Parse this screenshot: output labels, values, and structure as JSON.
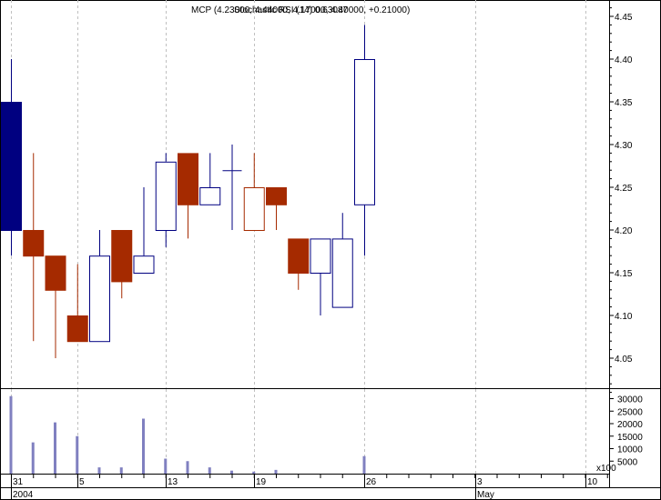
{
  "chart_data": {
    "type": "candlestick",
    "title": "MCP (4.23000, 4.44000, 4.17000, 4.40000, +0.21000)",
    "title_overlay": "Stochastic RSI (14) 0.63087",
    "price_axis": {
      "ticks": [
        "4.45",
        "4.40",
        "4.35",
        "4.30",
        "4.25",
        "4.20",
        "4.15",
        "4.10",
        "4.05"
      ],
      "ylim": [
        4.0,
        4.48
      ]
    },
    "volume_axis": {
      "ticks": [
        "30000",
        "25000",
        "20000",
        "15000",
        "10000",
        "5000",
        "x100"
      ],
      "ylim": [
        0,
        33000
      ]
    },
    "x_tick_labels": [
      "31",
      "5",
      "13",
      "19",
      "26",
      "3",
      "10"
    ],
    "x_sub_labels": [
      "2004",
      "May"
    ],
    "colors": {
      "up": "#000080",
      "down": "#a52a00",
      "solid_up": "#000080",
      "volume": "#8080c0"
    },
    "candles": [
      {
        "open": 4.2,
        "high": 4.4,
        "low": 4.17,
        "close": 4.35,
        "style": "solid-up",
        "volume": 31000
      },
      {
        "open": 4.2,
        "high": 4.29,
        "low": 4.07,
        "close": 4.17,
        "style": "down",
        "volume": 12500
      },
      {
        "open": 4.17,
        "high": 4.17,
        "low": 4.05,
        "close": 4.13,
        "style": "down",
        "volume": 20500
      },
      {
        "open": 4.1,
        "high": 4.16,
        "low": 4.07,
        "close": 4.07,
        "style": "down",
        "volume": 15000
      },
      {
        "open": 4.07,
        "high": 4.2,
        "low": 4.07,
        "close": 4.17,
        "style": "up",
        "volume": 2500
      },
      {
        "open": 4.2,
        "high": 4.2,
        "low": 4.12,
        "close": 4.14,
        "style": "down",
        "volume": 2500
      },
      {
        "open": 4.15,
        "high": 4.25,
        "low": 4.15,
        "close": 4.17,
        "style": "up",
        "volume": 22000
      },
      {
        "open": 4.2,
        "high": 4.29,
        "low": 4.18,
        "close": 4.28,
        "style": "up",
        "volume": 6000
      },
      {
        "open": 4.29,
        "high": 4.29,
        "low": 4.19,
        "close": 4.23,
        "style": "down",
        "volume": 5000
      },
      {
        "open": 4.23,
        "high": 4.29,
        "low": 4.23,
        "close": 4.25,
        "style": "up",
        "volume": 2500
      },
      {
        "open": 4.27,
        "high": 4.3,
        "low": 4.2,
        "close": 4.27,
        "style": "up",
        "volume": 1200
      },
      {
        "open": 4.25,
        "high": 4.29,
        "low": 4.2,
        "close": 4.2,
        "style": "hollow-down",
        "volume": 800
      },
      {
        "open": 4.25,
        "high": 4.25,
        "low": 4.2,
        "close": 4.23,
        "style": "down",
        "volume": 1500
      },
      {
        "open": 4.19,
        "high": 4.19,
        "low": 4.13,
        "close": 4.15,
        "style": "down",
        "volume": 0
      },
      {
        "open": 4.15,
        "high": 4.19,
        "low": 4.1,
        "close": 4.19,
        "style": "up",
        "volume": 0
      },
      {
        "open": 4.11,
        "high": 4.22,
        "low": 4.11,
        "close": 4.19,
        "style": "up",
        "volume": 0
      },
      {
        "open": 4.23,
        "high": 4.44,
        "low": 4.17,
        "close": 4.4,
        "style": "up",
        "volume": 7000
      }
    ],
    "grid": true,
    "legend": "top-center"
  }
}
